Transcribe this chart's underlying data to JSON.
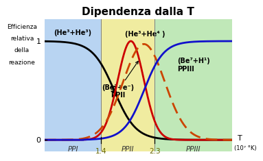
{
  "title": "Dipendenza dalla T",
  "ylabel_lines": [
    "Efficienza",
    "relativa",
    "della",
    "reazione"
  ],
  "xlabel": "T",
  "xlabel_unit": "(10⁷ °K)",
  "bg_color": "white",
  "region_PPI_color": "#b8d4f2",
  "region_PPII_color": "#f0eca0",
  "region_PPIII_color": "#c0e8b8",
  "boundary1": 1.4,
  "boundary2": 2.3,
  "xlim": [
    0.45,
    3.6
  ],
  "ylim": [
    -0.12,
    1.22
  ],
  "label_PPI": "PPI",
  "label_PPII": "PPII",
  "label_PPIII": "PPIII",
  "curve_PPI_color": "black",
  "curve_PPII_solid_color": "#cc0000",
  "curve_PPII_dashed_color": "#cc4400",
  "curve_PPIII_color": "#1111cc",
  "annot_PPI_curve": "PPI",
  "annot_He3He3": "(He³+He³)",
  "annot_He3He4": "(He³+He⁴ )",
  "annot_PPII_label": "(Be⁷+e⁻)\nPPII",
  "annot_Be7H1": "(Be⁷+H¹)\nPPIII"
}
